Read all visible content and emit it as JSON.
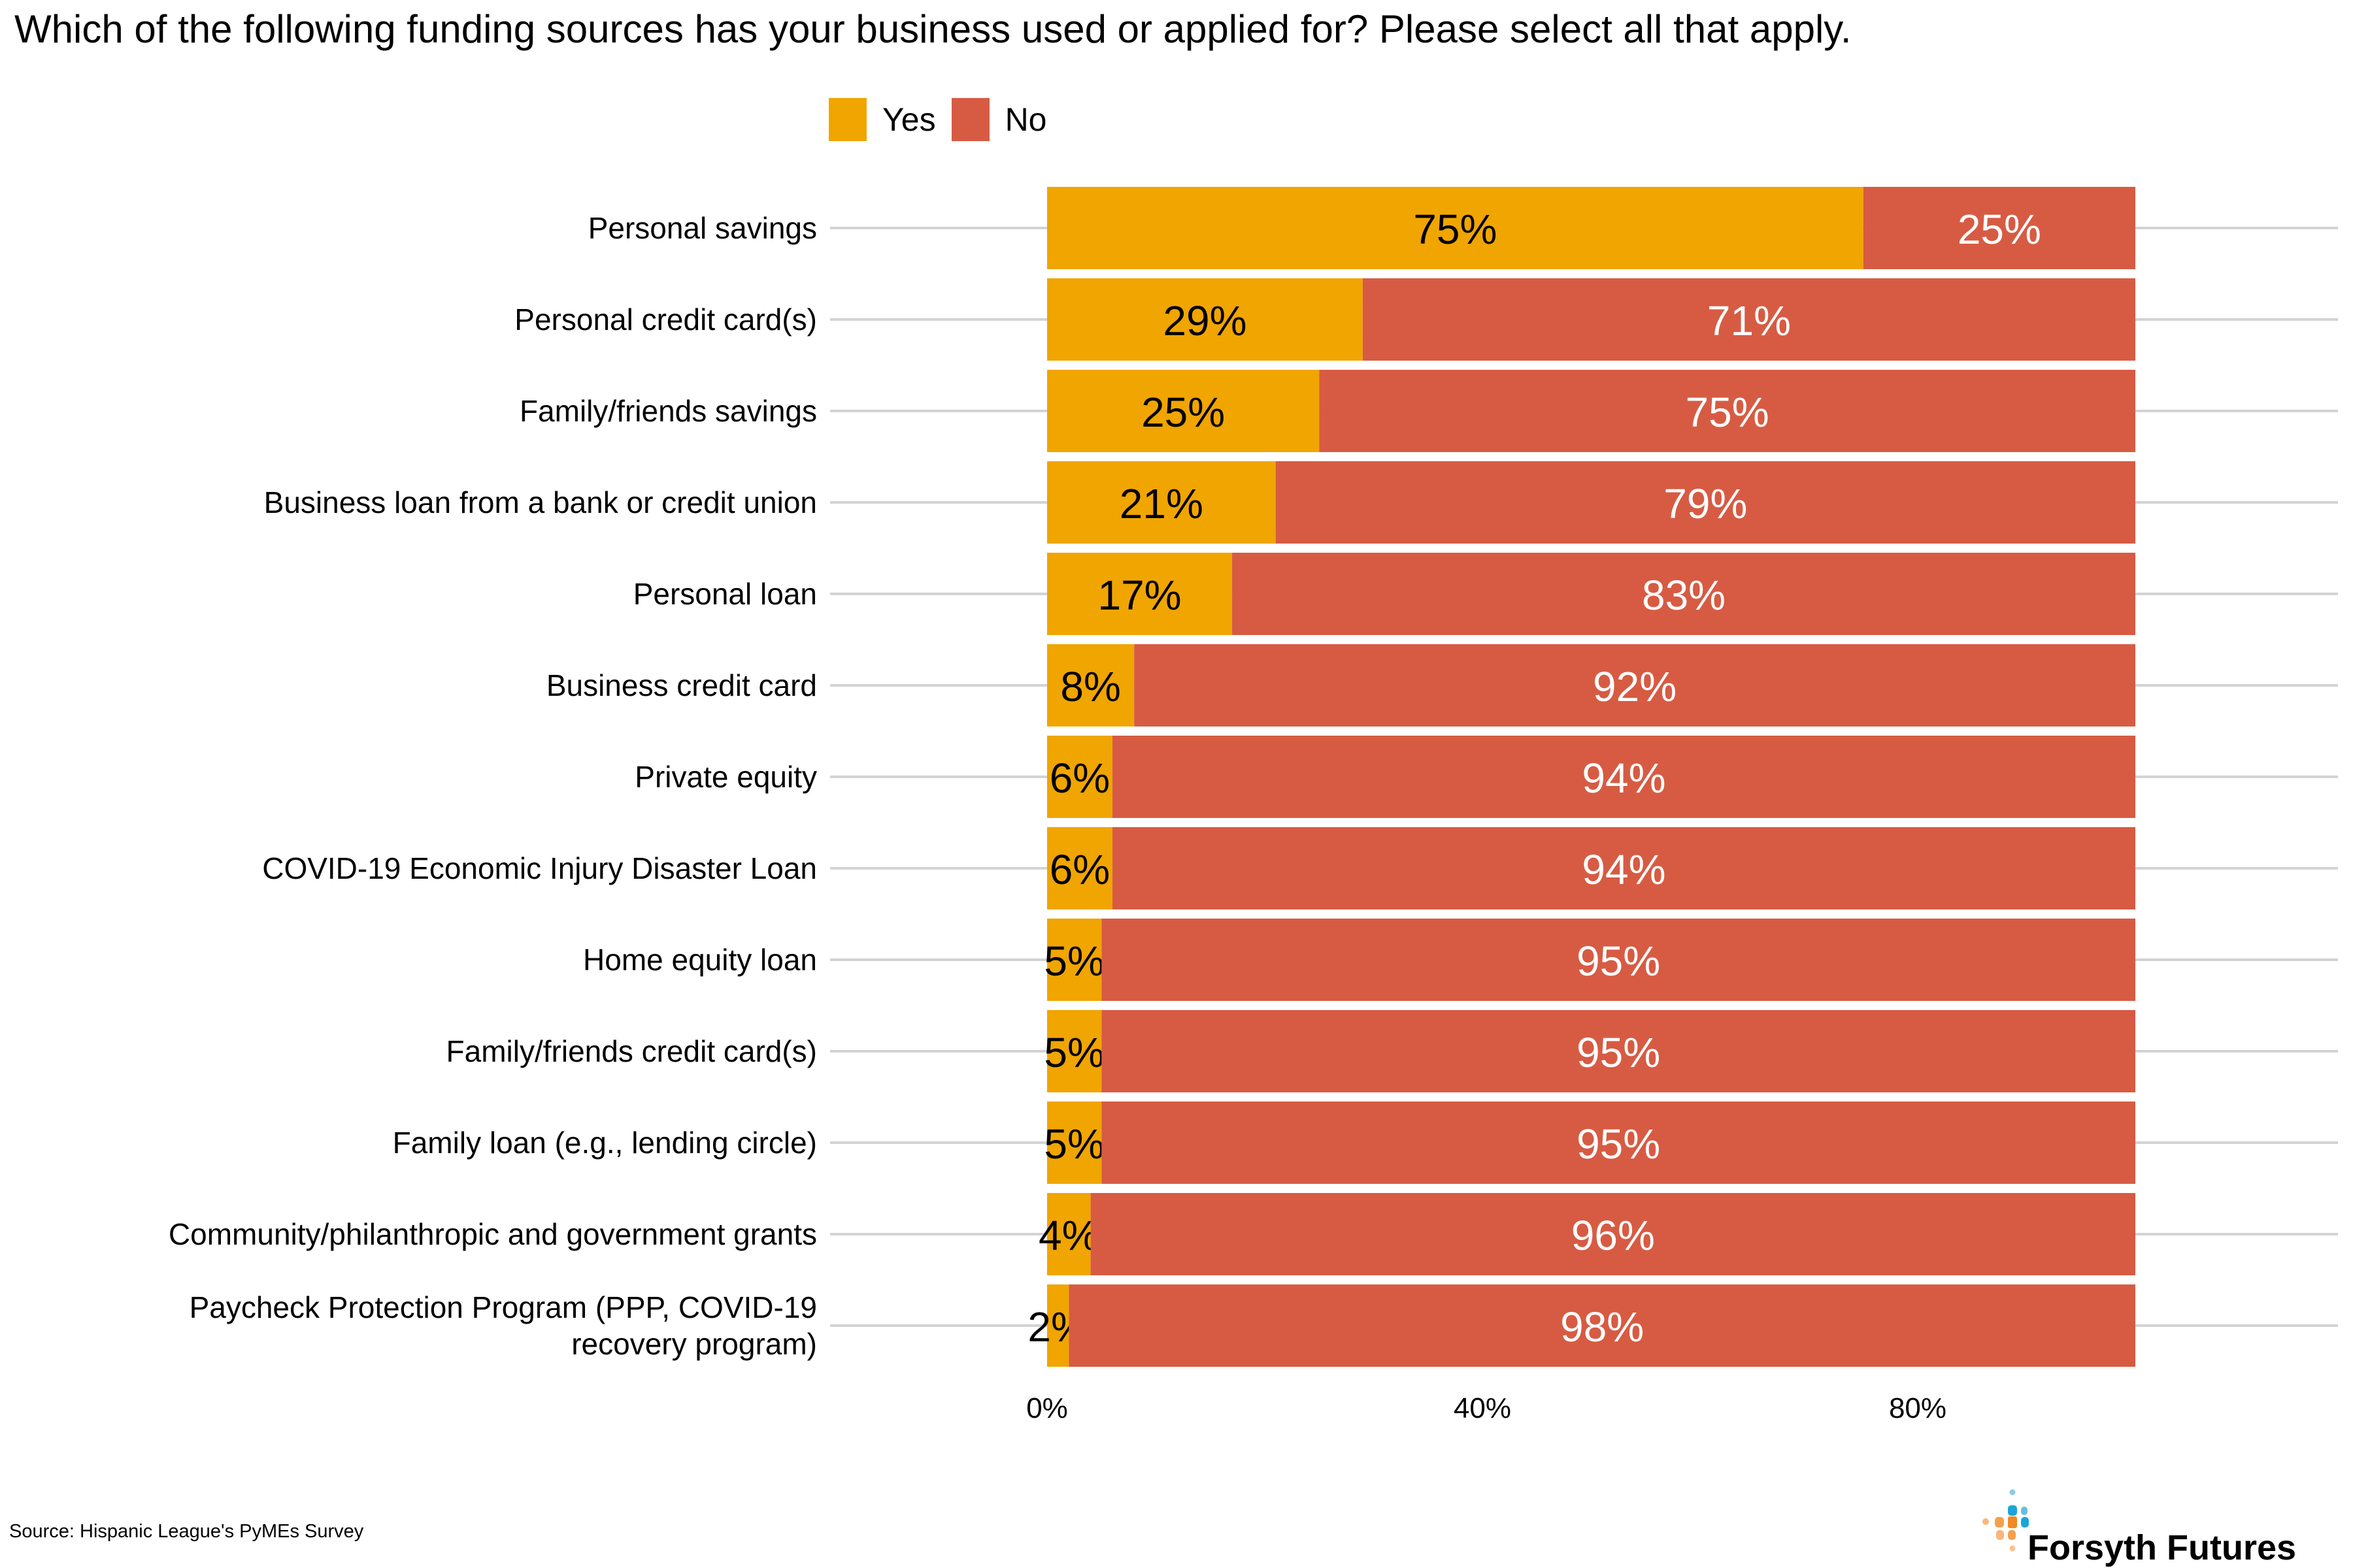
{
  "chart_data": {
    "type": "bar",
    "orientation": "horizontal",
    "stacked": true,
    "title": "Which of the following funding sources has your business used or applied for? Please select all that apply.",
    "xlabel": "",
    "ylabel": "",
    "xlim": [
      0,
      100
    ],
    "x_ticks": [
      0,
      40,
      80
    ],
    "x_tick_labels": [
      "0%",
      "40%",
      "80%"
    ],
    "grid": "horizontal lines at categories",
    "legend_position": "top",
    "categories": [
      "Personal savings",
      "Personal credit card(s)",
      "Family/friends savings",
      "Business loan from a bank or credit union",
      "Personal loan",
      "Business credit card",
      "Private equity",
      "COVID-19 Economic Injury Disaster Loan",
      "Home equity loan",
      "Family/friends credit card(s)",
      "Family loan (e.g., lending circle)",
      "Community/philanthropic and government grants",
      "Paycheck Protection Program (PPP, COVID-19 recovery program)"
    ],
    "series": [
      {
        "name": "Yes",
        "color": "#F0A500",
        "label_color": "#000000",
        "values": [
          75,
          29,
          25,
          21,
          17,
          8,
          6,
          6,
          5,
          5,
          5,
          4,
          2
        ]
      },
      {
        "name": "No",
        "color": "#D75B43",
        "label_color": "#FFFFFF",
        "values": [
          25,
          71,
          75,
          79,
          83,
          92,
          94,
          94,
          95,
          95,
          95,
          96,
          98
        ]
      }
    ],
    "value_suffix": "%"
  },
  "source": "Source: Hispanic League's PyMEs Survey",
  "logo": {
    "text": "Forsyth Futures"
  },
  "colors": {
    "grid": "#D3D3D3",
    "logo_orange": "#F39237",
    "logo_blue": "#1AA6D8"
  }
}
